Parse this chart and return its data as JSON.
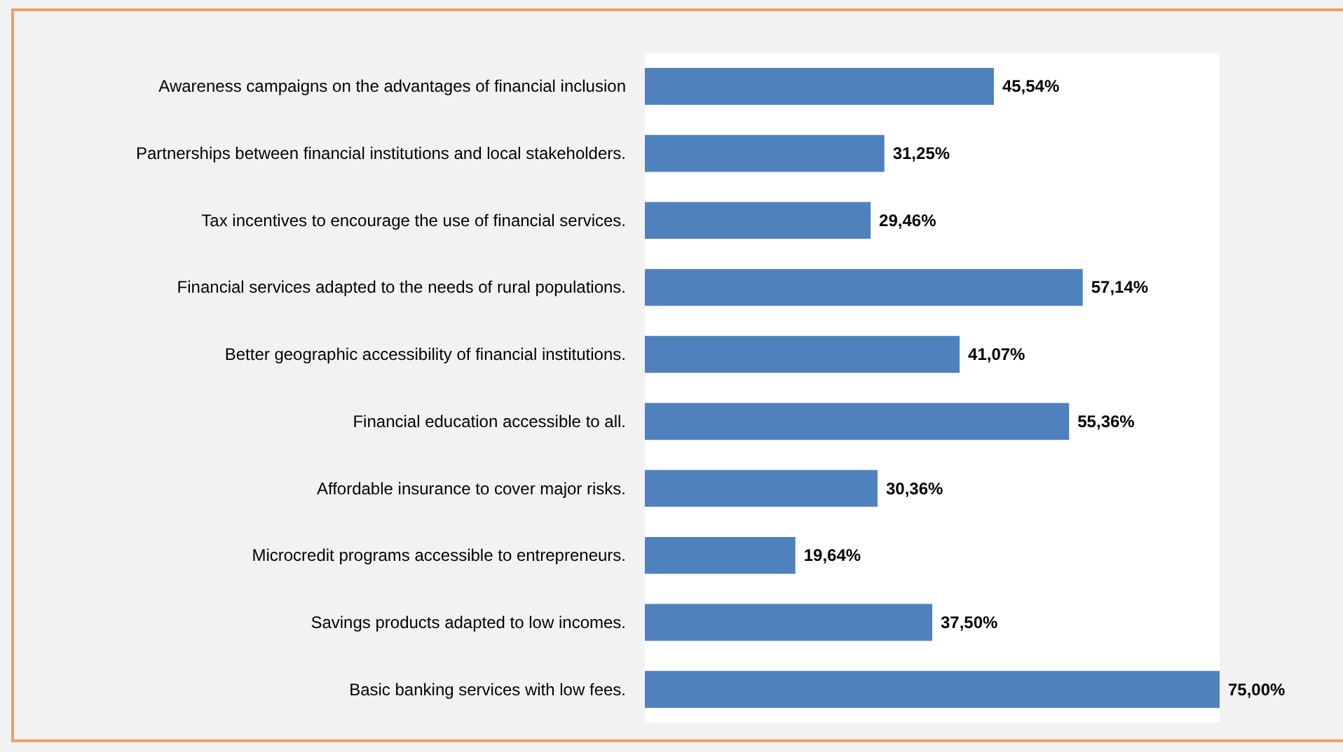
{
  "chart_data": {
    "type": "bar",
    "orientation": "horizontal",
    "categories": [
      "Awareness campaigns on the advantages of financial inclusion",
      "Partnerships between financial institutions and local stakeholders.",
      "Tax incentives to encourage the use of financial services.",
      "Financial services adapted to the needs of rural populations.",
      "Better geographic accessibility of financial institutions.",
      "Financial education accessible to all.",
      "Affordable insurance to cover major risks.",
      "Microcredit programs accessible to entrepreneurs.",
      "Savings products adapted to low incomes.",
      "Basic banking services with low fees."
    ],
    "values": [
      45.54,
      31.25,
      29.46,
      57.14,
      41.07,
      55.36,
      30.36,
      19.64,
      37.5,
      75
    ],
    "value_labels": [
      "45,54%",
      "31,25%",
      "29,46%",
      "57,14%",
      "41,07%",
      "55,36%",
      "30,36%",
      "19,64%",
      "37,50%",
      "75,00%"
    ],
    "color": "#4f81bd",
    "grid": false
  }
}
